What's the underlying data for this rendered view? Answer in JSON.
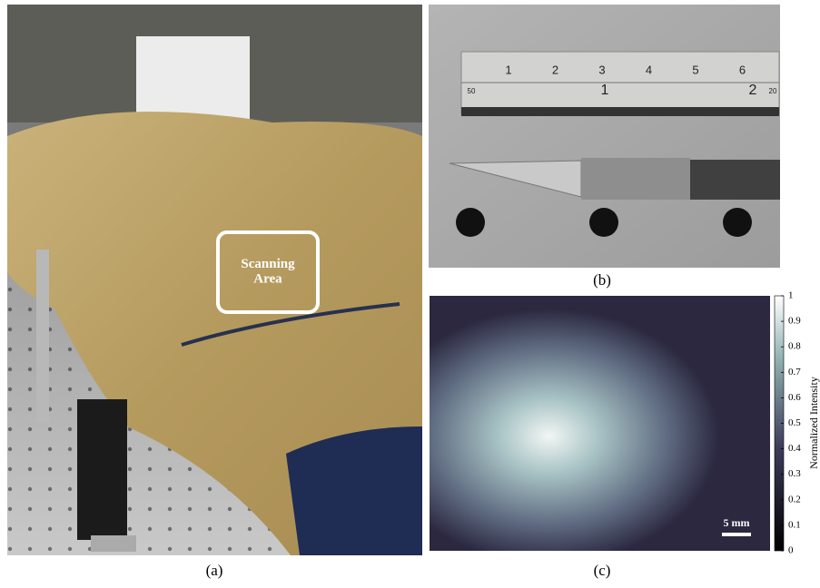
{
  "panel_a": {
    "label": "(a)",
    "annotation": "Scanning Area"
  },
  "panel_b": {
    "label": "(b)",
    "ruler_inch_labels": [
      "1",
      "2",
      "3",
      "4",
      "5",
      "6"
    ],
    "ruler_cm_labels": [
      "50",
      "1",
      "2",
      "20"
    ]
  },
  "panel_c": {
    "label": "(c)",
    "scale_bar": "5 mm",
    "colorbar": {
      "label": "Normalized Intensity",
      "lim": [
        0,
        1
      ],
      "ticks": [
        0,
        0.1,
        0.2,
        0.3,
        0.4,
        0.5,
        0.6,
        0.7,
        0.8,
        0.9,
        1
      ]
    }
  }
}
